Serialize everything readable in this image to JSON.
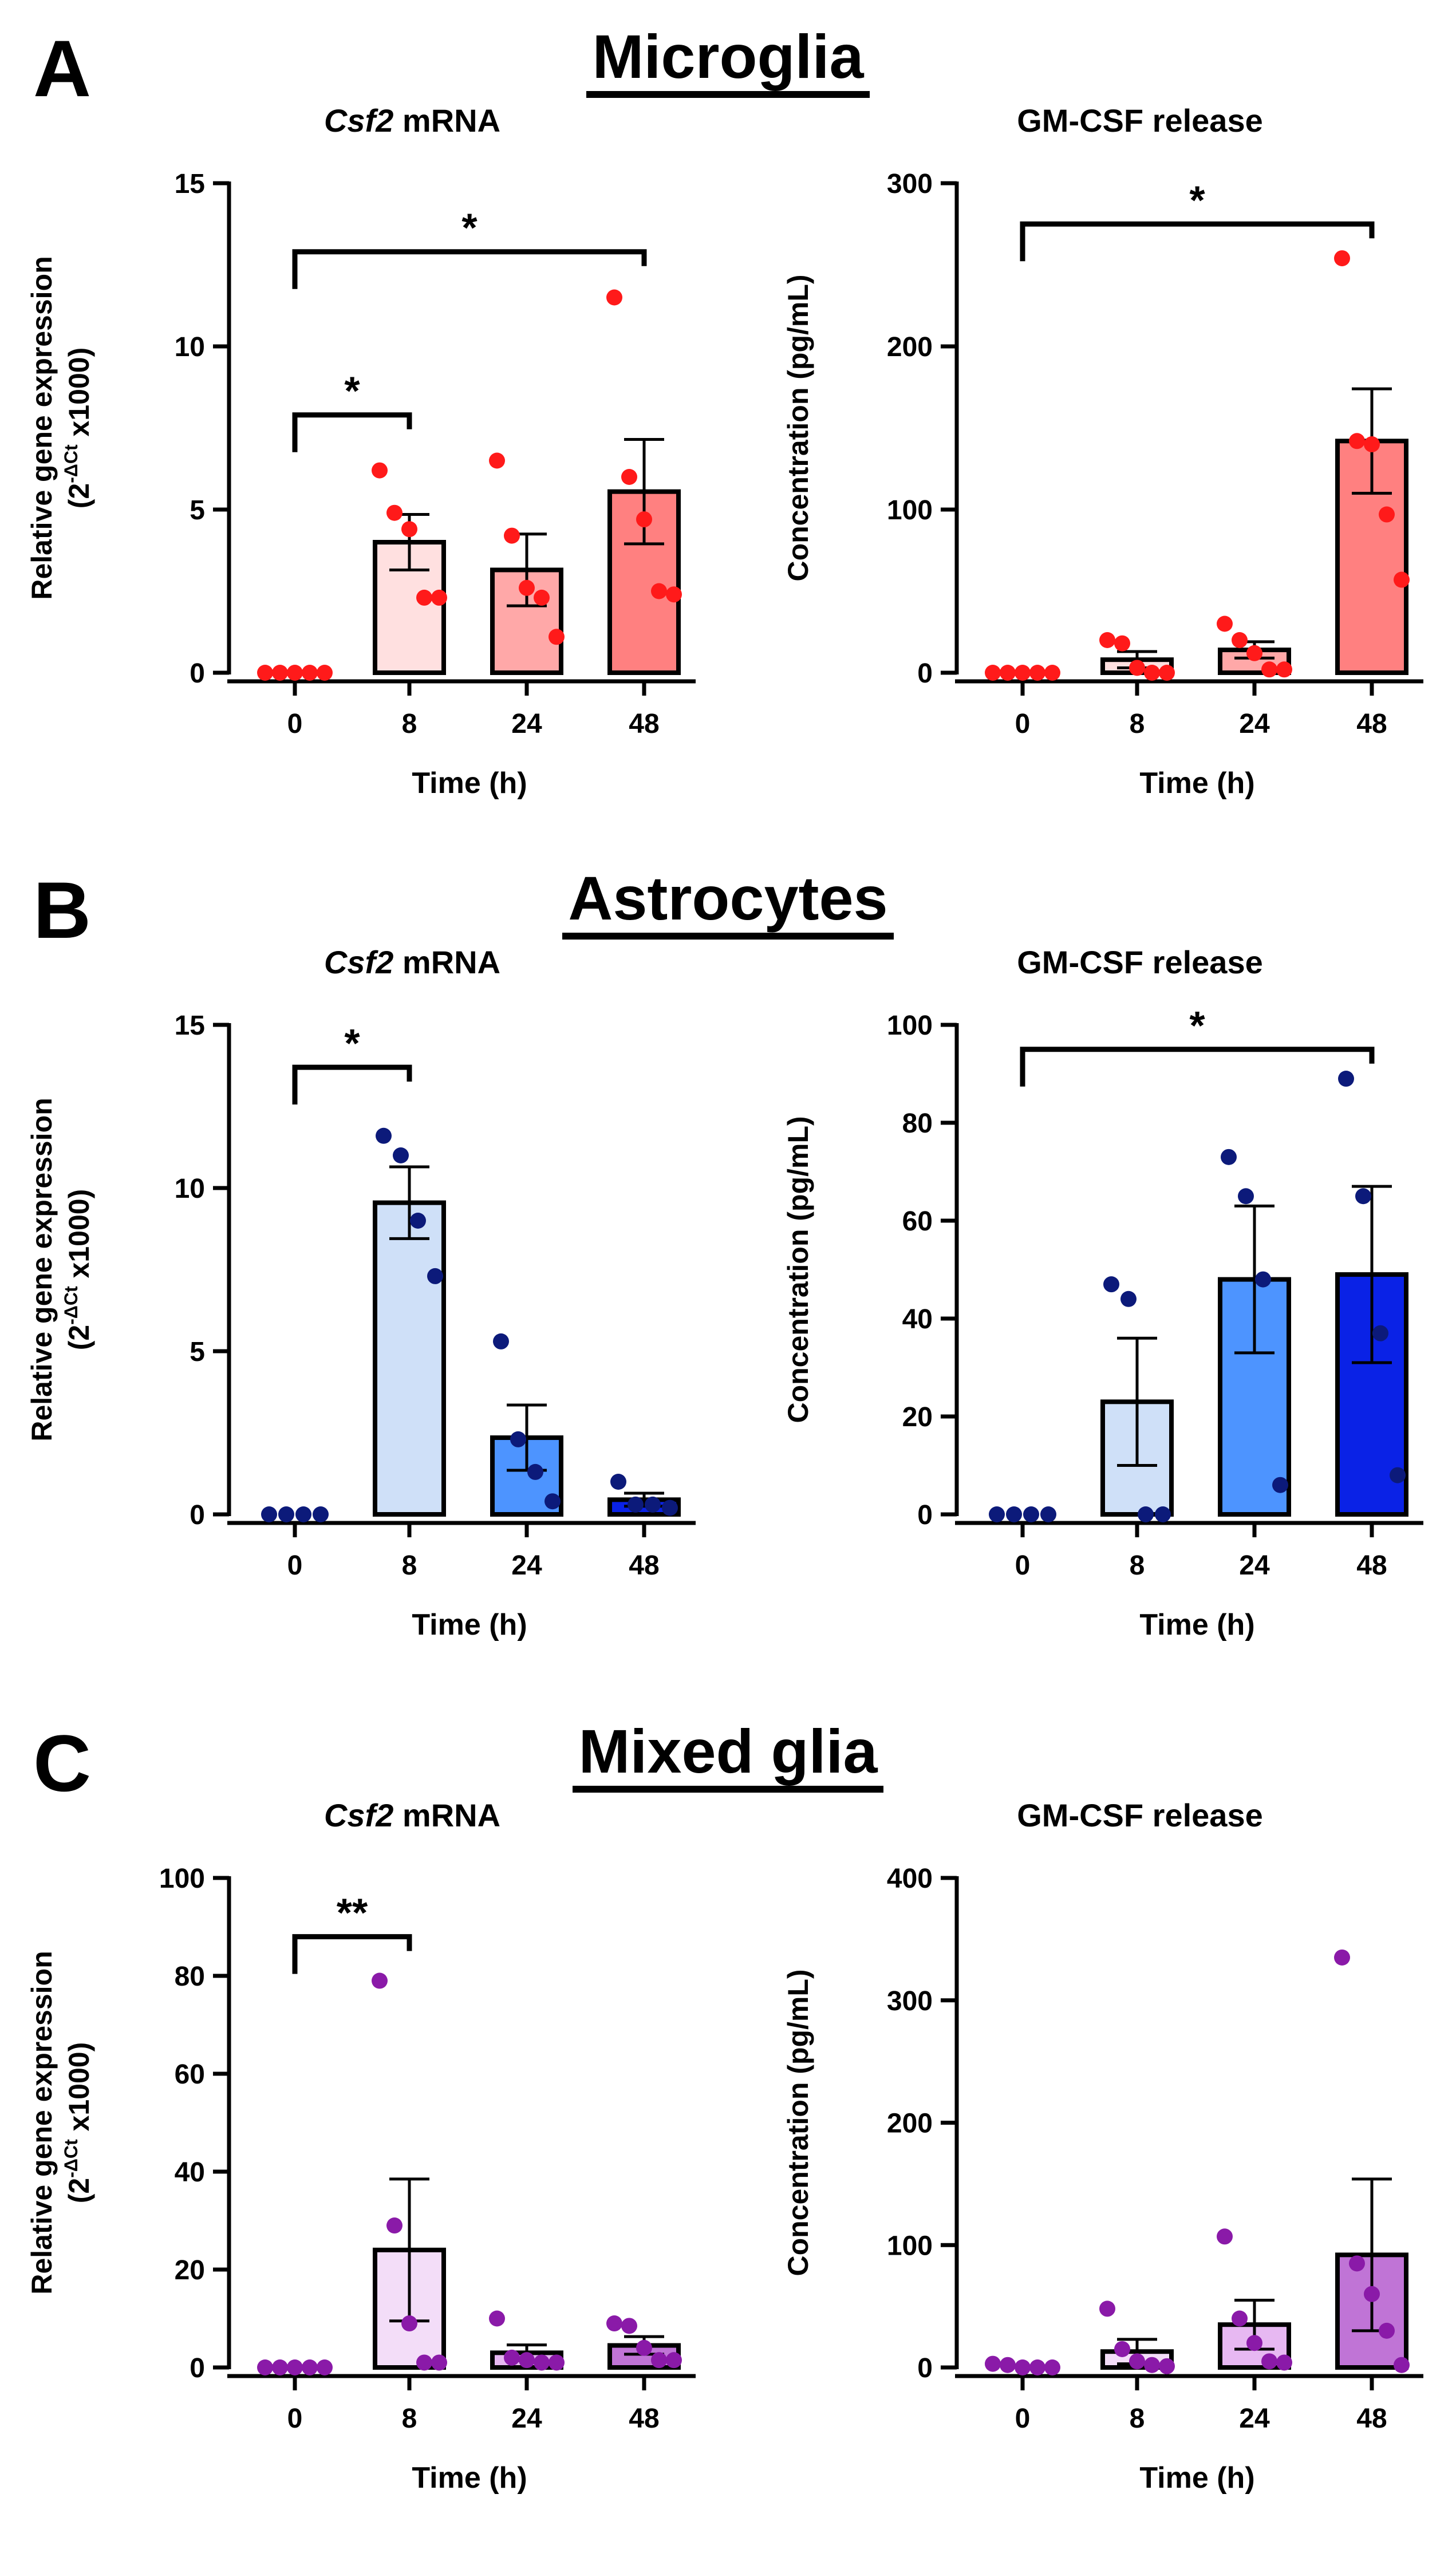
{
  "sections": [
    {
      "letter": "A",
      "title": "Microglia",
      "colors": {
        "bars": [
          "#ffffff",
          "#ffe0e0",
          "#ffa8a8",
          "#ff8080"
        ],
        "dots": "#ff1a1a"
      },
      "panels": [
        {
          "title_italic": "Csf2",
          "title_rest": " mRNA",
          "ylabel_line1": "Relative gene expression",
          "ylabel_line2": "(2",
          "ylabel_sup": "-ΔCt",
          "ylabel_line2_end": " x1000)",
          "xlabel": "Time (h)",
          "categories": [
            "0",
            "8",
            "24",
            "48"
          ],
          "ylim": [
            0,
            15
          ],
          "yticks": [
            0,
            5,
            10,
            15
          ],
          "means": [
            0,
            4.0,
            3.15,
            5.55
          ],
          "sem": [
            0,
            0.85,
            1.1,
            1.6
          ],
          "points": [
            [
              0,
              0,
              0,
              0,
              0
            ],
            [
              6.2,
              4.9,
              4.4,
              2.3,
              2.3
            ],
            [
              6.5,
              4.2,
              2.6,
              2.3,
              1.1
            ],
            [
              11.5,
              6.0,
              4.7,
              2.5,
              2.4
            ]
          ],
          "brackets": [
            {
              "from": 0,
              "to": 1,
              "y": 7.9,
              "label": "*"
            },
            {
              "from": 0,
              "to": 3,
              "y": 12.9,
              "label": "*"
            }
          ]
        },
        {
          "title_italic": "",
          "title_rest": "GM-CSF release",
          "ylabel_line1": "Concentration (pg/mL)",
          "xlabel": "Time (h)",
          "categories": [
            "0",
            "8",
            "24",
            "48"
          ],
          "ylim": [
            0,
            300
          ],
          "yticks": [
            0,
            100,
            200,
            300
          ],
          "means": [
            0,
            8,
            14,
            142
          ],
          "sem": [
            0,
            5,
            5,
            32
          ],
          "points": [
            [
              0,
              0,
              0,
              0,
              0
            ],
            [
              20,
              18,
              3,
              0,
              0
            ],
            [
              30,
              20,
              12,
              2,
              2
            ],
            [
              254,
              142,
              140,
              97,
              57
            ]
          ],
          "brackets": [
            {
              "from": 0,
              "to": 3,
              "y": 275,
              "label": "*"
            }
          ]
        }
      ]
    },
    {
      "letter": "B",
      "title": "Astrocytes",
      "colors": {
        "bars": [
          "#ffffff",
          "#cfe0f8",
          "#4d94ff",
          "#0a22e6"
        ],
        "dots": "#0c1a7a"
      },
      "panels": [
        {
          "title_italic": "Csf2",
          "title_rest": " mRNA",
          "ylabel_line1": "Relative gene expression",
          "ylabel_line2": "(2",
          "ylabel_sup": "-ΔCt",
          "ylabel_line2_end": " x1000)",
          "xlabel": "Time (h)",
          "categories": [
            "0",
            "8",
            "24",
            "48"
          ],
          "ylim": [
            0,
            15
          ],
          "yticks": [
            0,
            5,
            10,
            15
          ],
          "means": [
            0,
            9.55,
            2.35,
            0.45
          ],
          "sem": [
            0,
            1.1,
            1.0,
            0.2
          ],
          "points": [
            [
              0,
              0,
              0,
              0
            ],
            [
              11.6,
              11.0,
              9.0,
              7.3
            ],
            [
              5.3,
              2.3,
              1.3,
              0.4
            ],
            [
              1.0,
              0.3,
              0.3,
              0.2
            ]
          ],
          "brackets": [
            {
              "from": 0,
              "to": 1,
              "y": 13.7,
              "label": "*"
            }
          ]
        },
        {
          "title_italic": "",
          "title_rest": "GM-CSF release",
          "ylabel_line1": "Concentration (pg/mL)",
          "xlabel": "Time (h)",
          "categories": [
            "0",
            "8",
            "24",
            "48"
          ],
          "ylim": [
            0,
            100
          ],
          "yticks": [
            0,
            20,
            40,
            60,
            80,
            100
          ],
          "means": [
            0,
            23,
            48,
            49
          ],
          "sem": [
            0,
            13,
            15,
            18
          ],
          "points": [
            [
              0,
              0,
              0,
              0
            ],
            [
              47,
              44,
              0,
              0
            ],
            [
              73,
              65,
              48,
              6
            ],
            [
              89,
              65,
              37,
              8
            ]
          ],
          "brackets": [
            {
              "from": 0,
              "to": 3,
              "y": 95,
              "label": "*"
            }
          ]
        }
      ]
    },
    {
      "letter": "C",
      "title": "Mixed glia",
      "colors": {
        "bars": [
          "#ffffff",
          "#f3ddf8",
          "#e7b8f2",
          "#c074d6"
        ],
        "dots": "#8a1aa8"
      },
      "panels": [
        {
          "title_italic": "Csf2",
          "title_rest": " mRNA",
          "ylabel_line1": "Relative gene expression",
          "ylabel_line2": "(2",
          "ylabel_sup": "-ΔCt",
          "ylabel_line2_end": " x1000)",
          "xlabel": "Time (h)",
          "categories": [
            "0",
            "8",
            "24",
            "48"
          ],
          "ylim": [
            0,
            100
          ],
          "yticks": [
            0,
            20,
            40,
            60,
            80,
            100
          ],
          "means": [
            0,
            24,
            3,
            4.5
          ],
          "sem": [
            0,
            14.5,
            1.6,
            1.8
          ],
          "points": [
            [
              0,
              0,
              0,
              0,
              0
            ],
            [
              79,
              29,
              9,
              1,
              1
            ],
            [
              10,
              2,
              1.5,
              1,
              1
            ],
            [
              9,
              8.5,
              4,
              1.5,
              1.5
            ]
          ],
          "brackets": [
            {
              "from": 0,
              "to": 1,
              "y": 88,
              "label": "**"
            }
          ]
        },
        {
          "title_italic": "",
          "title_rest": "GM-CSF release",
          "ylabel_line1": "Concentration (pg/mL)",
          "xlabel": "Time (h)",
          "categories": [
            "0",
            "8",
            "24",
            "48"
          ],
          "ylim": [
            0,
            400
          ],
          "yticks": [
            0,
            100,
            200,
            300,
            400
          ],
          "means": [
            0,
            13,
            35,
            92
          ],
          "sem": [
            0,
            10,
            20,
            62
          ],
          "points": [
            [
              3,
              2,
              0,
              0,
              0
            ],
            [
              48,
              15,
              5,
              2,
              1
            ],
            [
              107,
              40,
              20,
              5,
              4
            ],
            [
              335,
              85,
              60,
              30,
              2
            ]
          ],
          "brackets": []
        }
      ]
    }
  ]
}
